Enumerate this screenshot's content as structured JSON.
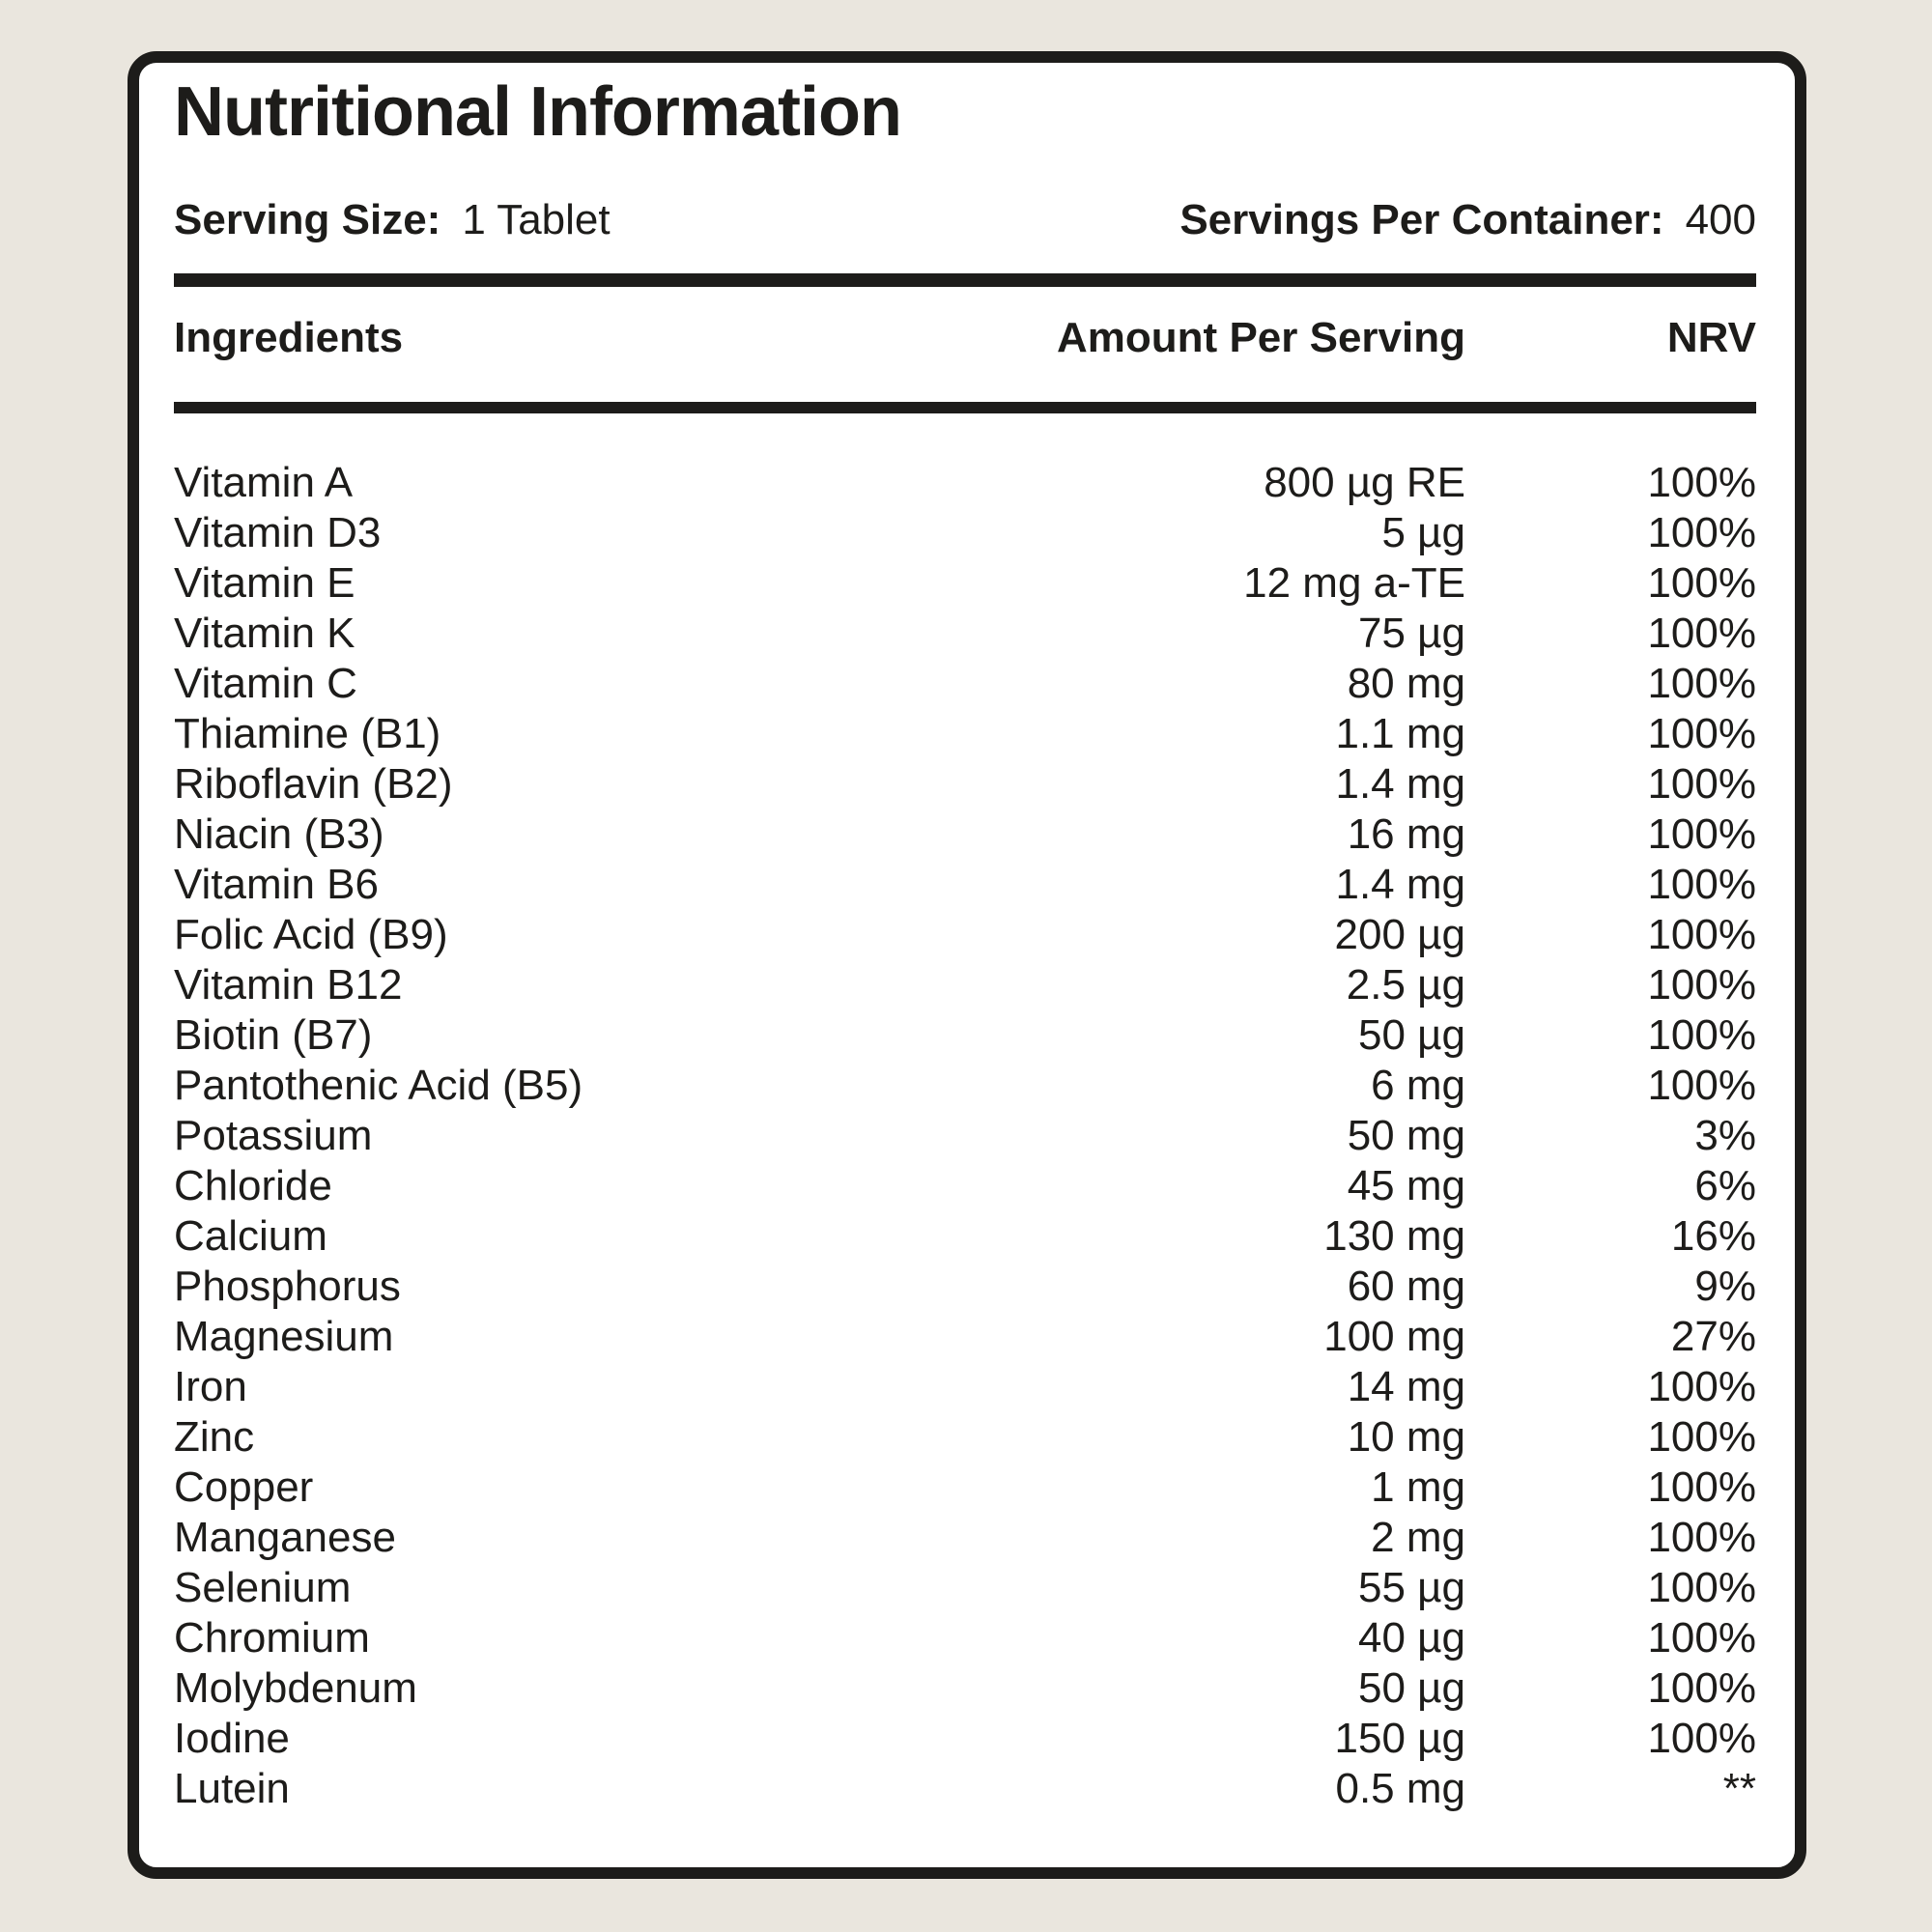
{
  "label": {
    "title": "Nutritional Information",
    "serving_size_label": "Serving Size:",
    "serving_size_value": "1 Tablet",
    "servings_per_container_label": "Servings Per Container:",
    "servings_per_container_value": "400"
  },
  "colors": {
    "background": "#EAE6DE",
    "card": "#FFFFFF",
    "ink": "#1D1C1A"
  },
  "table": {
    "columns": {
      "ingredients": "Ingredients",
      "amount": "Amount Per Serving",
      "nrv": "NRV"
    },
    "rows": [
      {
        "name": "Vitamin A",
        "amount": "800 µg RE",
        "nrv": "100%"
      },
      {
        "name": "Vitamin D3",
        "amount": "5 µg",
        "nrv": "100%"
      },
      {
        "name": "Vitamin E",
        "amount": "12 mg a-TE",
        "nrv": "100%"
      },
      {
        "name": "Vitamin K",
        "amount": "75 µg",
        "nrv": "100%"
      },
      {
        "name": "Vitamin C",
        "amount": "80 mg",
        "nrv": "100%"
      },
      {
        "name": "Thiamine (B1)",
        "amount": "1.1 mg",
        "nrv": "100%"
      },
      {
        "name": "Riboflavin (B2)",
        "amount": "1.4 mg",
        "nrv": "100%"
      },
      {
        "name": "Niacin (B3)",
        "amount": "16 mg",
        "nrv": "100%"
      },
      {
        "name": "Vitamin B6",
        "amount": "1.4 mg",
        "nrv": "100%"
      },
      {
        "name": "Folic Acid (B9)",
        "amount": "200 µg",
        "nrv": "100%"
      },
      {
        "name": "Vitamin B12",
        "amount": "2.5 µg",
        "nrv": "100%"
      },
      {
        "name": "Biotin (B7)",
        "amount": "50 µg",
        "nrv": "100%"
      },
      {
        "name": "Pantothenic Acid (B5)",
        "amount": "6 mg",
        "nrv": "100%"
      },
      {
        "name": "Potassium",
        "amount": "50 mg",
        "nrv": "3%"
      },
      {
        "name": "Chloride",
        "amount": "45 mg",
        "nrv": "6%"
      },
      {
        "name": "Calcium",
        "amount": "130 mg",
        "nrv": "16%"
      },
      {
        "name": "Phosphorus",
        "amount": "60 mg",
        "nrv": "9%"
      },
      {
        "name": "Magnesium",
        "amount": "100 mg",
        "nrv": "27%"
      },
      {
        "name": "Iron",
        "amount": "14 mg",
        "nrv": "100%"
      },
      {
        "name": "Zinc",
        "amount": "10 mg",
        "nrv": "100%"
      },
      {
        "name": "Copper",
        "amount": "1 mg",
        "nrv": "100%"
      },
      {
        "name": "Manganese",
        "amount": "2 mg",
        "nrv": "100%"
      },
      {
        "name": "Selenium",
        "amount": "55 µg",
        "nrv": "100%"
      },
      {
        "name": "Chromium",
        "amount": "40 µg",
        "nrv": "100%"
      },
      {
        "name": "Molybdenum",
        "amount": "50 µg",
        "nrv": "100%"
      },
      {
        "name": "Iodine",
        "amount": "150 µg",
        "nrv": "100%"
      },
      {
        "name": "Lutein",
        "amount": "0.5 mg",
        "nrv": "**"
      }
    ]
  }
}
